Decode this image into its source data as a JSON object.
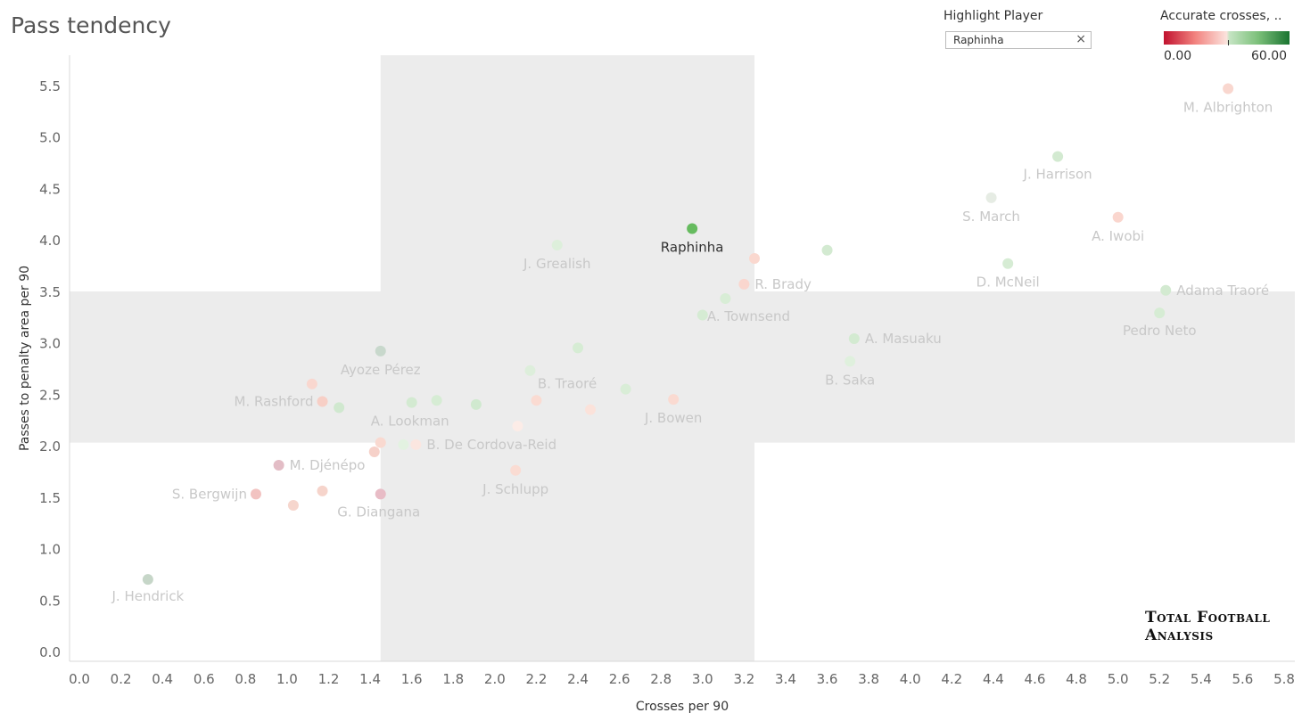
{
  "header": {
    "title": "Pass tendency"
  },
  "highlight": {
    "label": "Highlight Player",
    "value": "Raphinha",
    "clear_icon": "×"
  },
  "legend": {
    "title": "Accurate crosses, ..",
    "min": "0.00",
    "max": "60.00"
  },
  "logo": {
    "text": "Total Football Analysis"
  },
  "chart_data": {
    "type": "scatter",
    "title": "Pass tendency",
    "xlabel": "Crosses per 90",
    "ylabel": "Passes to penalty area per 90",
    "xlim": [
      0,
      5.8
    ],
    "ylim": [
      0,
      5.8
    ],
    "xticks": [
      "0.0",
      "0.2",
      "0.4",
      "0.6",
      "0.8",
      "1.0",
      "1.2",
      "1.4",
      "1.6",
      "1.8",
      "2.0",
      "2.2",
      "2.4",
      "2.6",
      "2.8",
      "3.0",
      "3.2",
      "3.4",
      "3.6",
      "3.8",
      "4.0",
      "4.2",
      "4.4",
      "4.6",
      "4.8",
      "5.0",
      "5.2",
      "5.4",
      "5.6",
      "5.8"
    ],
    "yticks": [
      "0.0",
      "0.5",
      "1.0",
      "1.5",
      "2.0",
      "2.5",
      "3.0",
      "3.5",
      "4.0",
      "4.5",
      "5.0",
      "5.5"
    ],
    "grid": false,
    "reference_bands": {
      "x_range": [
        1.45,
        3.25
      ],
      "y_range": [
        2.03,
        3.5
      ]
    },
    "highlighted": "Raphinha",
    "colors": {
      "highlight": "#66bb5f",
      "band": "#ececec"
    },
    "points": [
      {
        "x": 0.33,
        "y": 0.7,
        "label": "J. Hendrick",
        "color": "#c6d6c8"
      },
      {
        "x": 0.85,
        "y": 1.53,
        "label": "S. Bergwijn",
        "color": "#f2c3c1"
      },
      {
        "x": 0.96,
        "y": 1.81,
        "label": "M. Djénépo",
        "color": "#e3bdc6"
      },
      {
        "x": 1.03,
        "y": 1.42,
        "label": "",
        "color": "#f6d6cd"
      },
      {
        "x": 1.12,
        "y": 2.6,
        "label": "",
        "color": "#f9d7cf"
      },
      {
        "x": 1.17,
        "y": 2.43,
        "label": "M. Rashford",
        "color": "#f7cfc6"
      },
      {
        "x": 1.17,
        "y": 1.56,
        "label": "",
        "color": "#f6d4cb"
      },
      {
        "x": 1.25,
        "y": 2.37,
        "label": "",
        "color": "#d0e8cf"
      },
      {
        "x": 1.42,
        "y": 1.94,
        "label": "",
        "color": "#f6d1c9"
      },
      {
        "x": 1.45,
        "y": 2.92,
        "label": "Ayoze Pérez",
        "color": "#c8d8cc"
      },
      {
        "x": 1.45,
        "y": 2.03,
        "label": "",
        "color": "#f9d9d0"
      },
      {
        "x": 1.45,
        "y": 1.53,
        "label": "G. Diangana",
        "color": "#e8bcc6"
      },
      {
        "x": 1.56,
        "y": 2.01,
        "label": "",
        "color": "#e3f2e1"
      },
      {
        "x": 1.6,
        "y": 2.42,
        "label": "A. Lookman",
        "color": "#d3ead1"
      },
      {
        "x": 1.62,
        "y": 2.01,
        "label": "B. De Cordova-Reid",
        "color": "#fbe6e0"
      },
      {
        "x": 1.72,
        "y": 2.44,
        "label": "",
        "color": "#d6ecd4"
      },
      {
        "x": 1.91,
        "y": 2.4,
        "label": "",
        "color": "#d0e9cf"
      },
      {
        "x": 2.1,
        "y": 1.76,
        "label": "J. Schlupp",
        "color": "#fadcd3"
      },
      {
        "x": 2.11,
        "y": 2.19,
        "label": "",
        "color": "#fcece7"
      },
      {
        "x": 2.17,
        "y": 2.73,
        "label": "",
        "color": "#ddeedb"
      },
      {
        "x": 2.2,
        "y": 2.44,
        "label": "",
        "color": "#fadbd2"
      },
      {
        "x": 2.3,
        "y": 3.95,
        "label": "J. Grealish",
        "color": "#ddefdb"
      },
      {
        "x": 2.4,
        "y": 2.95,
        "label": "B. Traoré",
        "color": "#d6ecd4"
      },
      {
        "x": 2.46,
        "y": 2.35,
        "label": "",
        "color": "#fbe2da"
      },
      {
        "x": 2.63,
        "y": 2.55,
        "label": "",
        "color": "#d9edd7"
      },
      {
        "x": 2.86,
        "y": 2.45,
        "label": "J. Bowen",
        "color": "#fadad1"
      },
      {
        "x": 2.95,
        "y": 4.11,
        "label": "Raphinha",
        "color": "#66bb5f"
      },
      {
        "x": 3.0,
        "y": 3.27,
        "label": "",
        "color": "#d5ebd3"
      },
      {
        "x": 3.11,
        "y": 3.43,
        "label": "A. Townsend",
        "color": "#d8edd6"
      },
      {
        "x": 3.2,
        "y": 3.57,
        "label": "R. Brady",
        "color": "#fad6ce"
      },
      {
        "x": 3.25,
        "y": 3.82,
        "label": "",
        "color": "#fad8cf"
      },
      {
        "x": 3.6,
        "y": 3.9,
        "label": "",
        "color": "#d3ead1"
      },
      {
        "x": 3.71,
        "y": 2.82,
        "label": "B. Saka",
        "color": "#dff0dd"
      },
      {
        "x": 3.73,
        "y": 3.04,
        "label": "A. Masuaku",
        "color": "#d3ead1"
      },
      {
        "x": 4.39,
        "y": 4.41,
        "label": "S. March",
        "color": "#e6ece4"
      },
      {
        "x": 4.47,
        "y": 3.77,
        "label": "D. McNeil",
        "color": "#d6ecd4"
      },
      {
        "x": 4.71,
        "y": 4.81,
        "label": "J. Harrison",
        "color": "#d3ead1"
      },
      {
        "x": 5.0,
        "y": 4.22,
        "label": "A. Iwobi",
        "color": "#fad6ce"
      },
      {
        "x": 5.2,
        "y": 3.29,
        "label": "Pedro Neto",
        "color": "#d6ecd4"
      },
      {
        "x": 5.23,
        "y": 3.51,
        "label": "Adama Traoré",
        "color": "#d3ead1"
      },
      {
        "x": 5.53,
        "y": 5.47,
        "label": "M. Albrighton",
        "color": "#f9d7cf"
      }
    ]
  }
}
